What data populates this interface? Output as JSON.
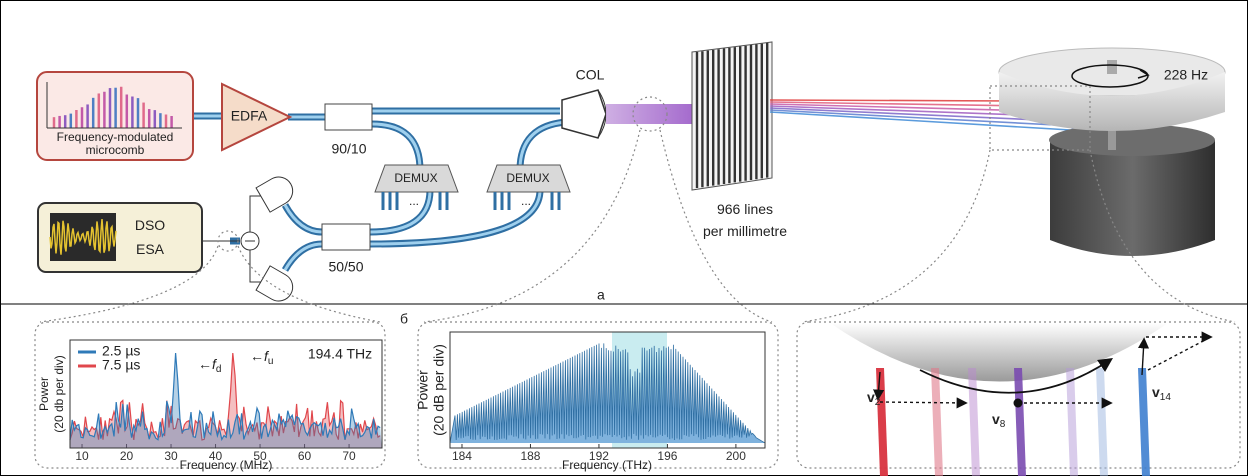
{
  "panel_labels": {
    "a": "а",
    "b": "б"
  },
  "setup": {
    "microcomb": [
      "Frequency-modulated",
      "microcomb"
    ],
    "edfa": "EDFA",
    "coupler_1": "90/10",
    "coupler_2": "50/50",
    "demux_1": "DEMUX",
    "demux_2": "DEMUX",
    "ellipsis": "...",
    "collimator": "COL",
    "grating": [
      "966 lines",
      "per millimetre"
    ],
    "rotation": "228 Hz",
    "scope": [
      "DSO",
      "ESA"
    ]
  },
  "panel_b": {
    "xlabel": "Frequency (MHz)",
    "ylabel": [
      "Power",
      "(20 db per div)"
    ],
    "xlim": [
      7.3,
      77.4
    ],
    "xticks": [
      10,
      20,
      30,
      40,
      50,
      60,
      70
    ],
    "series": [
      {
        "name": "2.5 µs",
        "color": "#2f7ab8"
      },
      {
        "name": "7.5 µs",
        "color": "#e0474c"
      }
    ],
    "annotation": "194.4 THz",
    "markers": [
      {
        "symbol": "f",
        "subscript": "d"
      },
      {
        "symbol": "f",
        "subscript": "u"
      }
    ]
  },
  "panel_c": {
    "xlabel": "Frequency (THz)",
    "ylabel": [
      "Power",
      "(20 dB per div)"
    ],
    "xlim": [
      183.3,
      201.7
    ],
    "xticks": [
      184,
      188,
      192,
      196,
      200
    ]
  },
  "panel_d": {
    "velocities": [
      {
        "symbol": "v",
        "subscript": "2"
      },
      {
        "symbol": "v",
        "subscript": "8"
      },
      {
        "symbol": "v",
        "subscript": "14"
      }
    ]
  }
}
